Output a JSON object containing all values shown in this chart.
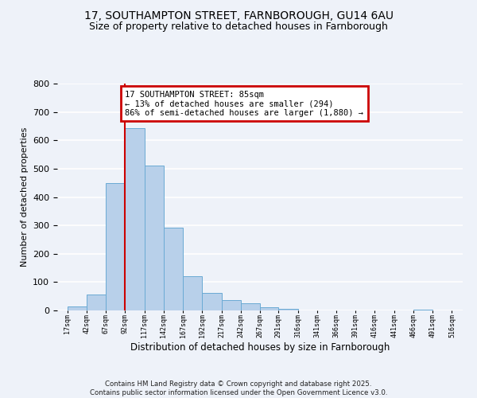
{
  "title_line1": "17, SOUTHAMPTON STREET, FARNBOROUGH, GU14 6AU",
  "title_line2": "Size of property relative to detached houses in Farnborough",
  "xlabel": "Distribution of detached houses by size in Farnborough",
  "ylabel": "Number of detached properties",
  "bar_left_edges": [
    17,
    42,
    67,
    92,
    117,
    142,
    167,
    192,
    217,
    242,
    267,
    291,
    316,
    341,
    366,
    391,
    416,
    441,
    466,
    491
  ],
  "bar_widths": [
    25,
    25,
    25,
    25,
    25,
    25,
    25,
    25,
    25,
    25,
    24,
    25,
    25,
    25,
    25,
    25,
    25,
    25,
    25,
    25
  ],
  "bar_heights": [
    13,
    57,
    450,
    643,
    511,
    292,
    121,
    62,
    37,
    24,
    10,
    5,
    0,
    0,
    0,
    0,
    0,
    0,
    3,
    0
  ],
  "bar_color": "#b8d0ea",
  "bar_edgecolor": "#6aaad4",
  "tick_labels": [
    "17sqm",
    "42sqm",
    "67sqm",
    "92sqm",
    "117sqm",
    "142sqm",
    "167sqm",
    "192sqm",
    "217sqm",
    "242sqm",
    "267sqm",
    "291sqm",
    "316sqm",
    "341sqm",
    "366sqm",
    "391sqm",
    "416sqm",
    "441sqm",
    "466sqm",
    "491sqm",
    "516sqm"
  ],
  "tick_positions": [
    17,
    42,
    67,
    92,
    117,
    142,
    167,
    192,
    217,
    242,
    267,
    291,
    316,
    341,
    366,
    391,
    416,
    441,
    466,
    491,
    516
  ],
  "ylim": [
    0,
    800
  ],
  "xlim": [
    4,
    530
  ],
  "yticks": [
    0,
    100,
    200,
    300,
    400,
    500,
    600,
    700,
    800
  ],
  "vline_x": 92,
  "vline_color": "#cc0000",
  "annotation_title": "17 SOUTHAMPTON STREET: 85sqm",
  "annotation_line1": "← 13% of detached houses are smaller (294)",
  "annotation_line2": "86% of semi-detached houses are larger (1,880) →",
  "footnote1": "Contains HM Land Registry data © Crown copyright and database right 2025.",
  "footnote2": "Contains public sector information licensed under the Open Government Licence v3.0.",
  "bg_color": "#eef2f9",
  "grid_color": "#ffffff",
  "title_fontsize": 10,
  "subtitle_fontsize": 9,
  "ylabel_fontsize": 8,
  "xlabel_fontsize": 8.5
}
